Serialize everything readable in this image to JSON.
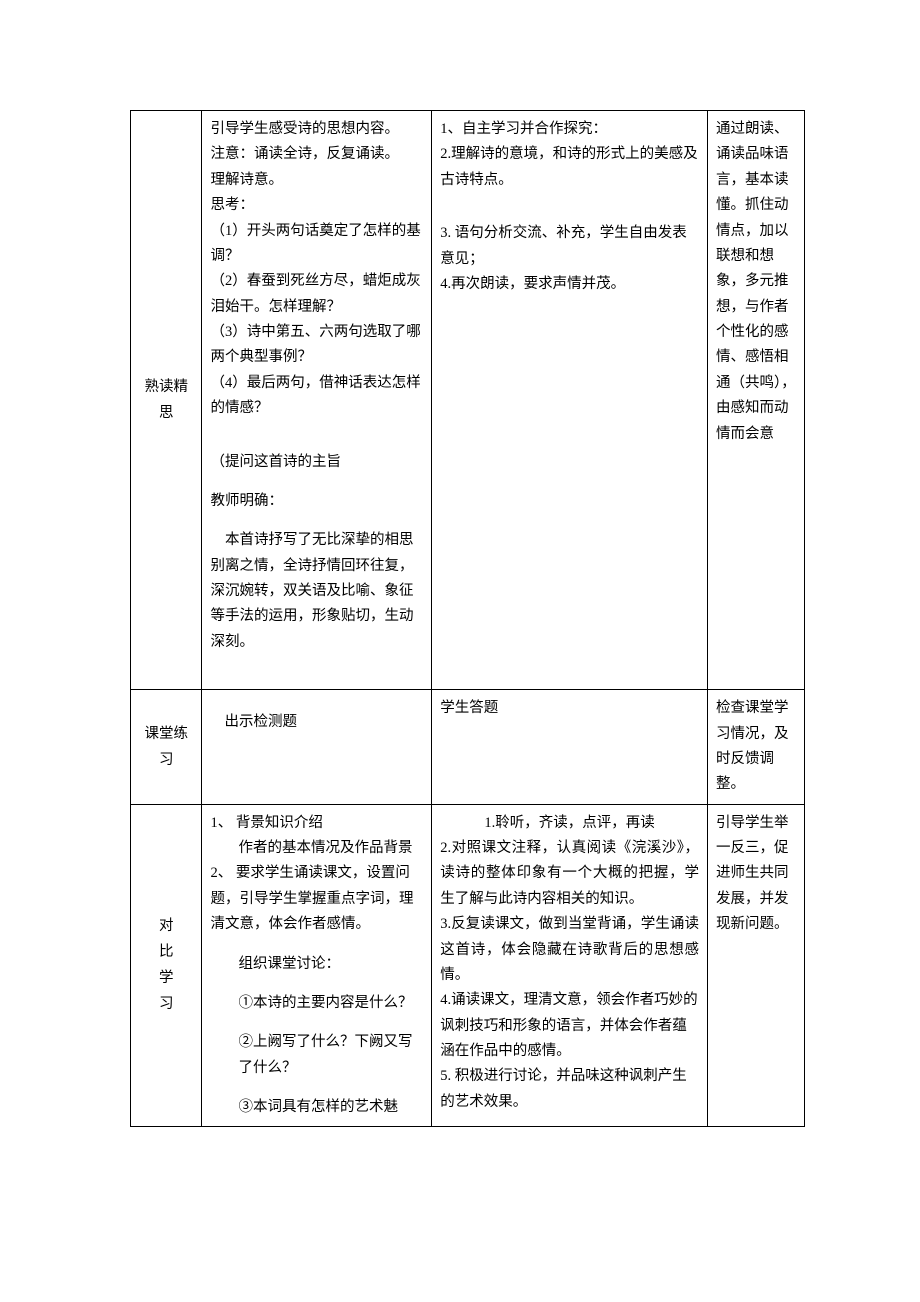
{
  "rows": [
    {
      "label": "熟读精\n思",
      "col2_lines": [
        "引导学生感受诗的思想内容。",
        "注意：诵读全诗，反复诵读。",
        "理解诗意。",
        "思考：",
        "（1）开头两句话奠定了怎样的基调？",
        "（2）春蚕到死丝方尽，蜡炬成灰泪始干。怎样理解？",
        "（3）诗中第五、六两句选取了哪两个典型事例？",
        "（4）最后两句，借神话表达怎样的情感？",
        "",
        "",
        "（提问这首诗的主旨",
        "",
        "教师明确：",
        "",
        "　本首诗抒写了无比深挚的相思别离之情，全诗抒情回环往复，深沉婉转，双关语及比喻、象征等手法的运用，形象贴切，生动深刻。",
        "",
        ""
      ],
      "col3_lines": [
        "1、自主学习并合作探究：",
        "2.理解诗的意境，和诗的形式上的美感及古诗特点。",
        "",
        "",
        "3. 语句分析交流、补充，学生自由发表意见；",
        "4.再次朗读，要求声情并茂。"
      ],
      "col4_lines": [
        "通过朗读、诵读品味语言，基本读懂。抓住动情点，加以联想和想象，多元推想，与作者个性化的感情、感悟相通（共鸣），由感知而动情而会意"
      ]
    },
    {
      "label": "课堂练\n习",
      "col2_lines": [
        "",
        "出示检测题"
      ],
      "col3_lines": [
        "学生答题"
      ],
      "col4_lines": [
        "检查课堂学习情况，及时反馈调整。"
      ]
    },
    {
      "label": "对\n比\n学\n习",
      "col2_lines_rich": [
        {
          "text": "1、 背景知识介绍",
          "style": ""
        },
        {
          "text": "作者的基本情况及作品背景",
          "style": "padding-left:28px;"
        },
        {
          "text": "2、 要求学生诵读课文，设置问题，引导学生掌握重点字词，理清文意，体会作者感情。",
          "style": "padding-left:0;"
        },
        {
          "text": "",
          "style": ""
        },
        {
          "text": "组织课堂讨论：",
          "style": "padding-left:28px;"
        },
        {
          "text": "",
          "style": ""
        },
        {
          "text": "①本诗的主要内容是什么？",
          "style": "padding-left:28px;"
        },
        {
          "text": "",
          "style": ""
        },
        {
          "text": "②上阙写了什么？下阙又写了什么？",
          "style": "padding-left:28px;"
        },
        {
          "text": "",
          "style": ""
        },
        {
          "text": "③本词具有怎样的艺术魅",
          "style": "padding-left:28px;"
        }
      ],
      "col3_lines_center": [
        "1.聆听，齐读，点评，再读",
        "2.对照课文注释，认真阅读《浣溪沙》，读诗的整体印象有一个大概的把握，学生了解与此诗内容相关的知识。",
        "3.反复读课文，做到当堂背诵，学生诵读这首诗，体会隐藏在诗歌背后的思想感情。"
      ],
      "col3_lines_left": [
        "4.诵读课文，理清文意，领会作者巧妙的讽刺技巧和形象的语言，并体会作者蕴涵在作品中的感情。",
        "5. 积极进行讨论，并品味这种讽刺产生的艺术效果。"
      ],
      "col4_lines": [
        "引导学生举一反三，促进师生共同发展，并发现新问题。"
      ]
    }
  ]
}
